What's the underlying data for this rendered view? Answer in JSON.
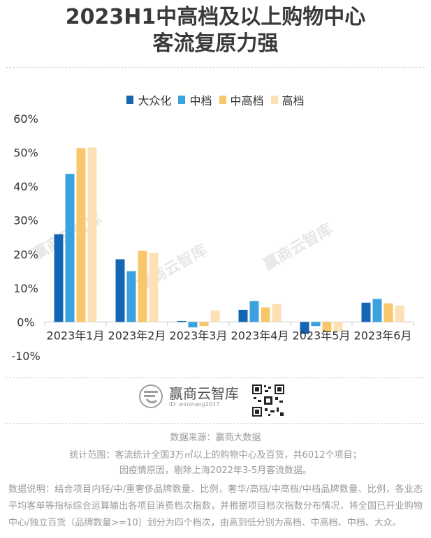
{
  "title": {
    "line1": "2023H1中高档及以上购物中心",
    "line2": "客流复原力强"
  },
  "watermark": "赢商云智库",
  "brand": {
    "name": "赢商云智库",
    "id": "ID: winshang2017"
  },
  "footer": {
    "source": "数据来源：赢商大数据",
    "scope": "统计范围：客流统计全国3万㎡以上的购物中心及百货，共6012个项目；",
    "epidemic": "因疫情原因，剔除上海2022年3-5月客流数据。",
    "note": "数据说明：结合项目内轻/中/重奢侈品牌数量、比例，奢华/高档/中高档/中档品牌数量、比例，各业态平均客单等指标综合运算输出各项目消费档次指数，并根据项目档次指数分布情况，将全国已开业购物中心/独立百货（品牌数量>=10）划分为四个档次，由高到低分别为高档、中高档、中档、大众。"
  },
  "colors": {
    "大众化": "#1565b5",
    "中档": "#3ca2df",
    "中高档": "#f9c76b",
    "高档": "#fde0b4",
    "axis": "#cccccc",
    "text": "#333333"
  },
  "chart_data": {
    "type": "bar",
    "categories": [
      "2023年1月",
      "2023年2月",
      "2023年3月",
      "2023年4月",
      "2023年5月",
      "2023年6月"
    ],
    "series": [
      {
        "name": "大众化",
        "values": [
          0.259,
          0.185,
          0.003,
          0.036,
          -0.035,
          0.057
        ]
      },
      {
        "name": "中档",
        "values": [
          0.437,
          0.15,
          -0.016,
          0.062,
          -0.012,
          0.068
        ]
      },
      {
        "name": "中高档",
        "values": [
          0.513,
          0.21,
          -0.012,
          0.043,
          -0.03,
          0.055
        ]
      },
      {
        "name": "高档",
        "values": [
          0.515,
          0.204,
          0.034,
          0.053,
          -0.028,
          0.049
        ]
      }
    ],
    "yticks": [
      "60%",
      "50%",
      "40%",
      "30%",
      "20%",
      "10%",
      "0%",
      "-10%"
    ],
    "ylim": [
      -0.1,
      0.6
    ],
    "grid": false,
    "legend": "top-center",
    "title": "",
    "xlabel": "",
    "ylabel": ""
  }
}
